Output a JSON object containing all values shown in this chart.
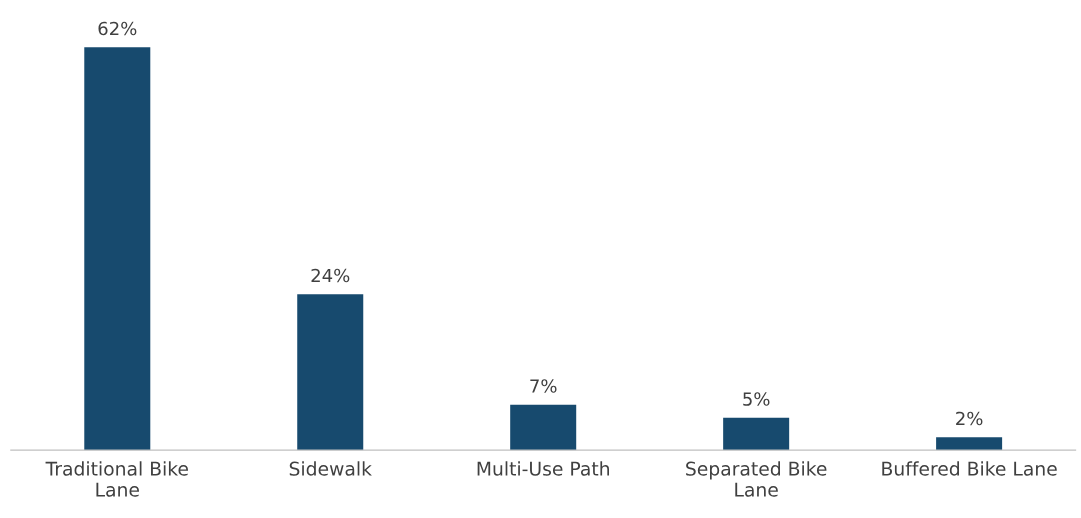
{
  "chart_data": {
    "type": "bar",
    "categories": [
      "Traditional Bike Lane",
      "Sidewalk",
      "Multi-Use Path",
      "Separated Bike Lane",
      "Buffered Bike Lane"
    ],
    "values": [
      62,
      24,
      7,
      5,
      2
    ],
    "value_labels": [
      "62%",
      "24%",
      "7%",
      "5%",
      "2%"
    ],
    "color": "#174a6e"
  }
}
